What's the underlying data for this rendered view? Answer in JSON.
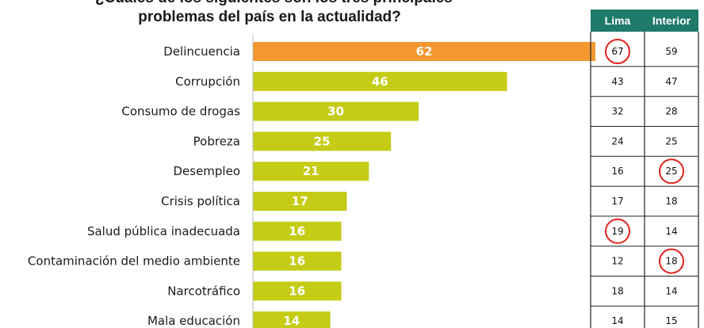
{
  "title_line1": "¿Cuáles de los siguientes son los tres principales",
  "title_line2": "problemas del país en la actualidad?",
  "colors": {
    "highlight": "#f3972f",
    "bar": "#c4cc16",
    "header": "#1f7a6a",
    "circle": "#e3231b"
  },
  "chart_data": {
    "type": "bar",
    "orientation": "horizontal",
    "title": "¿Cuáles de los siguientes son los tres principales problemas del país en la actualidad?",
    "categories": [
      "Delincuencia",
      "Corrupción",
      "Consumo de drogas",
      "Pobreza",
      "Desempleo",
      "Crisis política",
      "Salud pública inadecuada",
      "Contaminación del medio ambiente",
      "Narcotráfico",
      "Mala educación"
    ],
    "values": [
      62,
      46,
      30,
      25,
      21,
      17,
      16,
      16,
      16,
      14
    ],
    "highlight_index": 0,
    "xlim": [
      0,
      62
    ],
    "grid": false,
    "table": {
      "headers": [
        "Lima",
        "Interior"
      ],
      "lima": [
        67,
        43,
        32,
        24,
        16,
        17,
        19,
        12,
        18,
        14
      ],
      "interior": [
        59,
        47,
        28,
        25,
        25,
        18,
        14,
        18,
        14,
        15
      ],
      "circled": [
        [
          0,
          "lima"
        ],
        [
          4,
          "interior"
        ],
        [
          6,
          "lima"
        ],
        [
          7,
          "interior"
        ]
      ]
    }
  }
}
